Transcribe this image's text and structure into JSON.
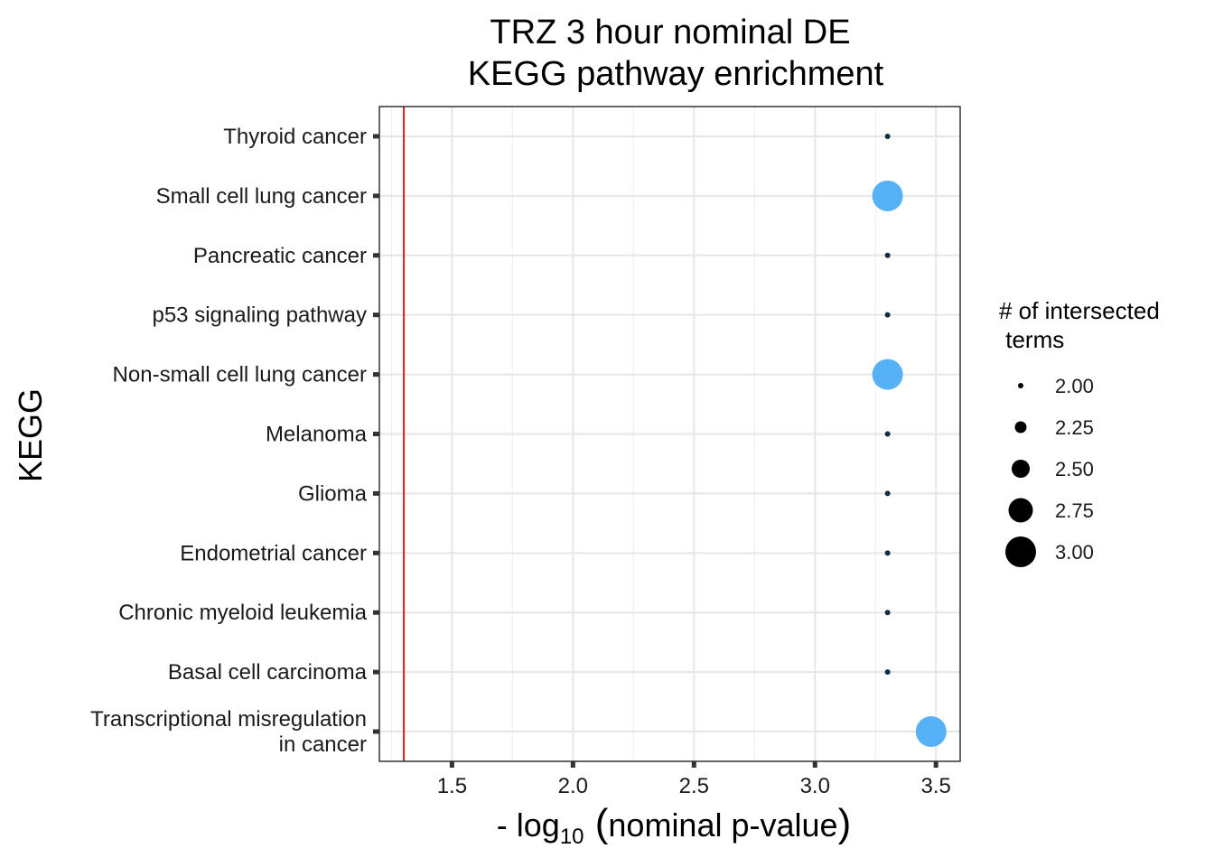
{
  "chart_data": {
    "type": "scatter",
    "title_lines": [
      "TRZ 3 hour nominal DE",
      "KEGG pathway enrichment"
    ],
    "xlabel": {
      "prefix": "- log",
      "subscript": "10",
      "suffix": "nominal p-value"
    },
    "ylabel": "KEGG",
    "xlim": [
      1.2,
      3.6
    ],
    "xticks": [
      "1.5",
      "2.0",
      "2.5",
      "3.0",
      "3.5"
    ],
    "threshold_line": {
      "x": 1.301,
      "color": "#e41a1c"
    },
    "categories": [
      [
        "Thyroid cancer"
      ],
      [
        "Small cell lung cancer"
      ],
      [
        "Pancreatic cancer"
      ],
      [
        "p53 signaling pathway"
      ],
      [
        "Non-small cell lung cancer"
      ],
      [
        "Melanoma"
      ],
      [
        "Glioma"
      ],
      [
        "Endometrial cancer"
      ],
      [
        "Chronic myeloid leukemia"
      ],
      [
        "Basal cell carcinoma"
      ],
      [
        "Transcriptional misregulation",
        "in cancer"
      ]
    ],
    "points": [
      {
        "x": 3.3,
        "size": 2,
        "color": "#132b43"
      },
      {
        "x": 3.3,
        "size": 3,
        "color": "#56b1f7"
      },
      {
        "x": 3.3,
        "size": 2,
        "color": "#132b43"
      },
      {
        "x": 3.3,
        "size": 2,
        "color": "#132b43"
      },
      {
        "x": 3.3,
        "size": 3,
        "color": "#56b1f7"
      },
      {
        "x": 3.3,
        "size": 2,
        "color": "#132b43"
      },
      {
        "x": 3.3,
        "size": 2,
        "color": "#132b43"
      },
      {
        "x": 3.3,
        "size": 2,
        "color": "#132b43"
      },
      {
        "x": 3.3,
        "size": 2,
        "color": "#132b43"
      },
      {
        "x": 3.3,
        "size": 2,
        "color": "#132b43"
      },
      {
        "x": 3.48,
        "size": 3,
        "color": "#56b1f7"
      }
    ],
    "grid": true,
    "legend": {
      "title_lines": [
        "# of intersected",
        " terms"
      ],
      "entries": [
        {
          "label": "2.00",
          "size": 2.0
        },
        {
          "label": "2.25",
          "size": 2.25
        },
        {
          "label": "2.50",
          "size": 2.5
        },
        {
          "label": "2.75",
          "size": 2.75
        },
        {
          "label": "3.00",
          "size": 3.0
        }
      ],
      "placement": "right"
    }
  }
}
